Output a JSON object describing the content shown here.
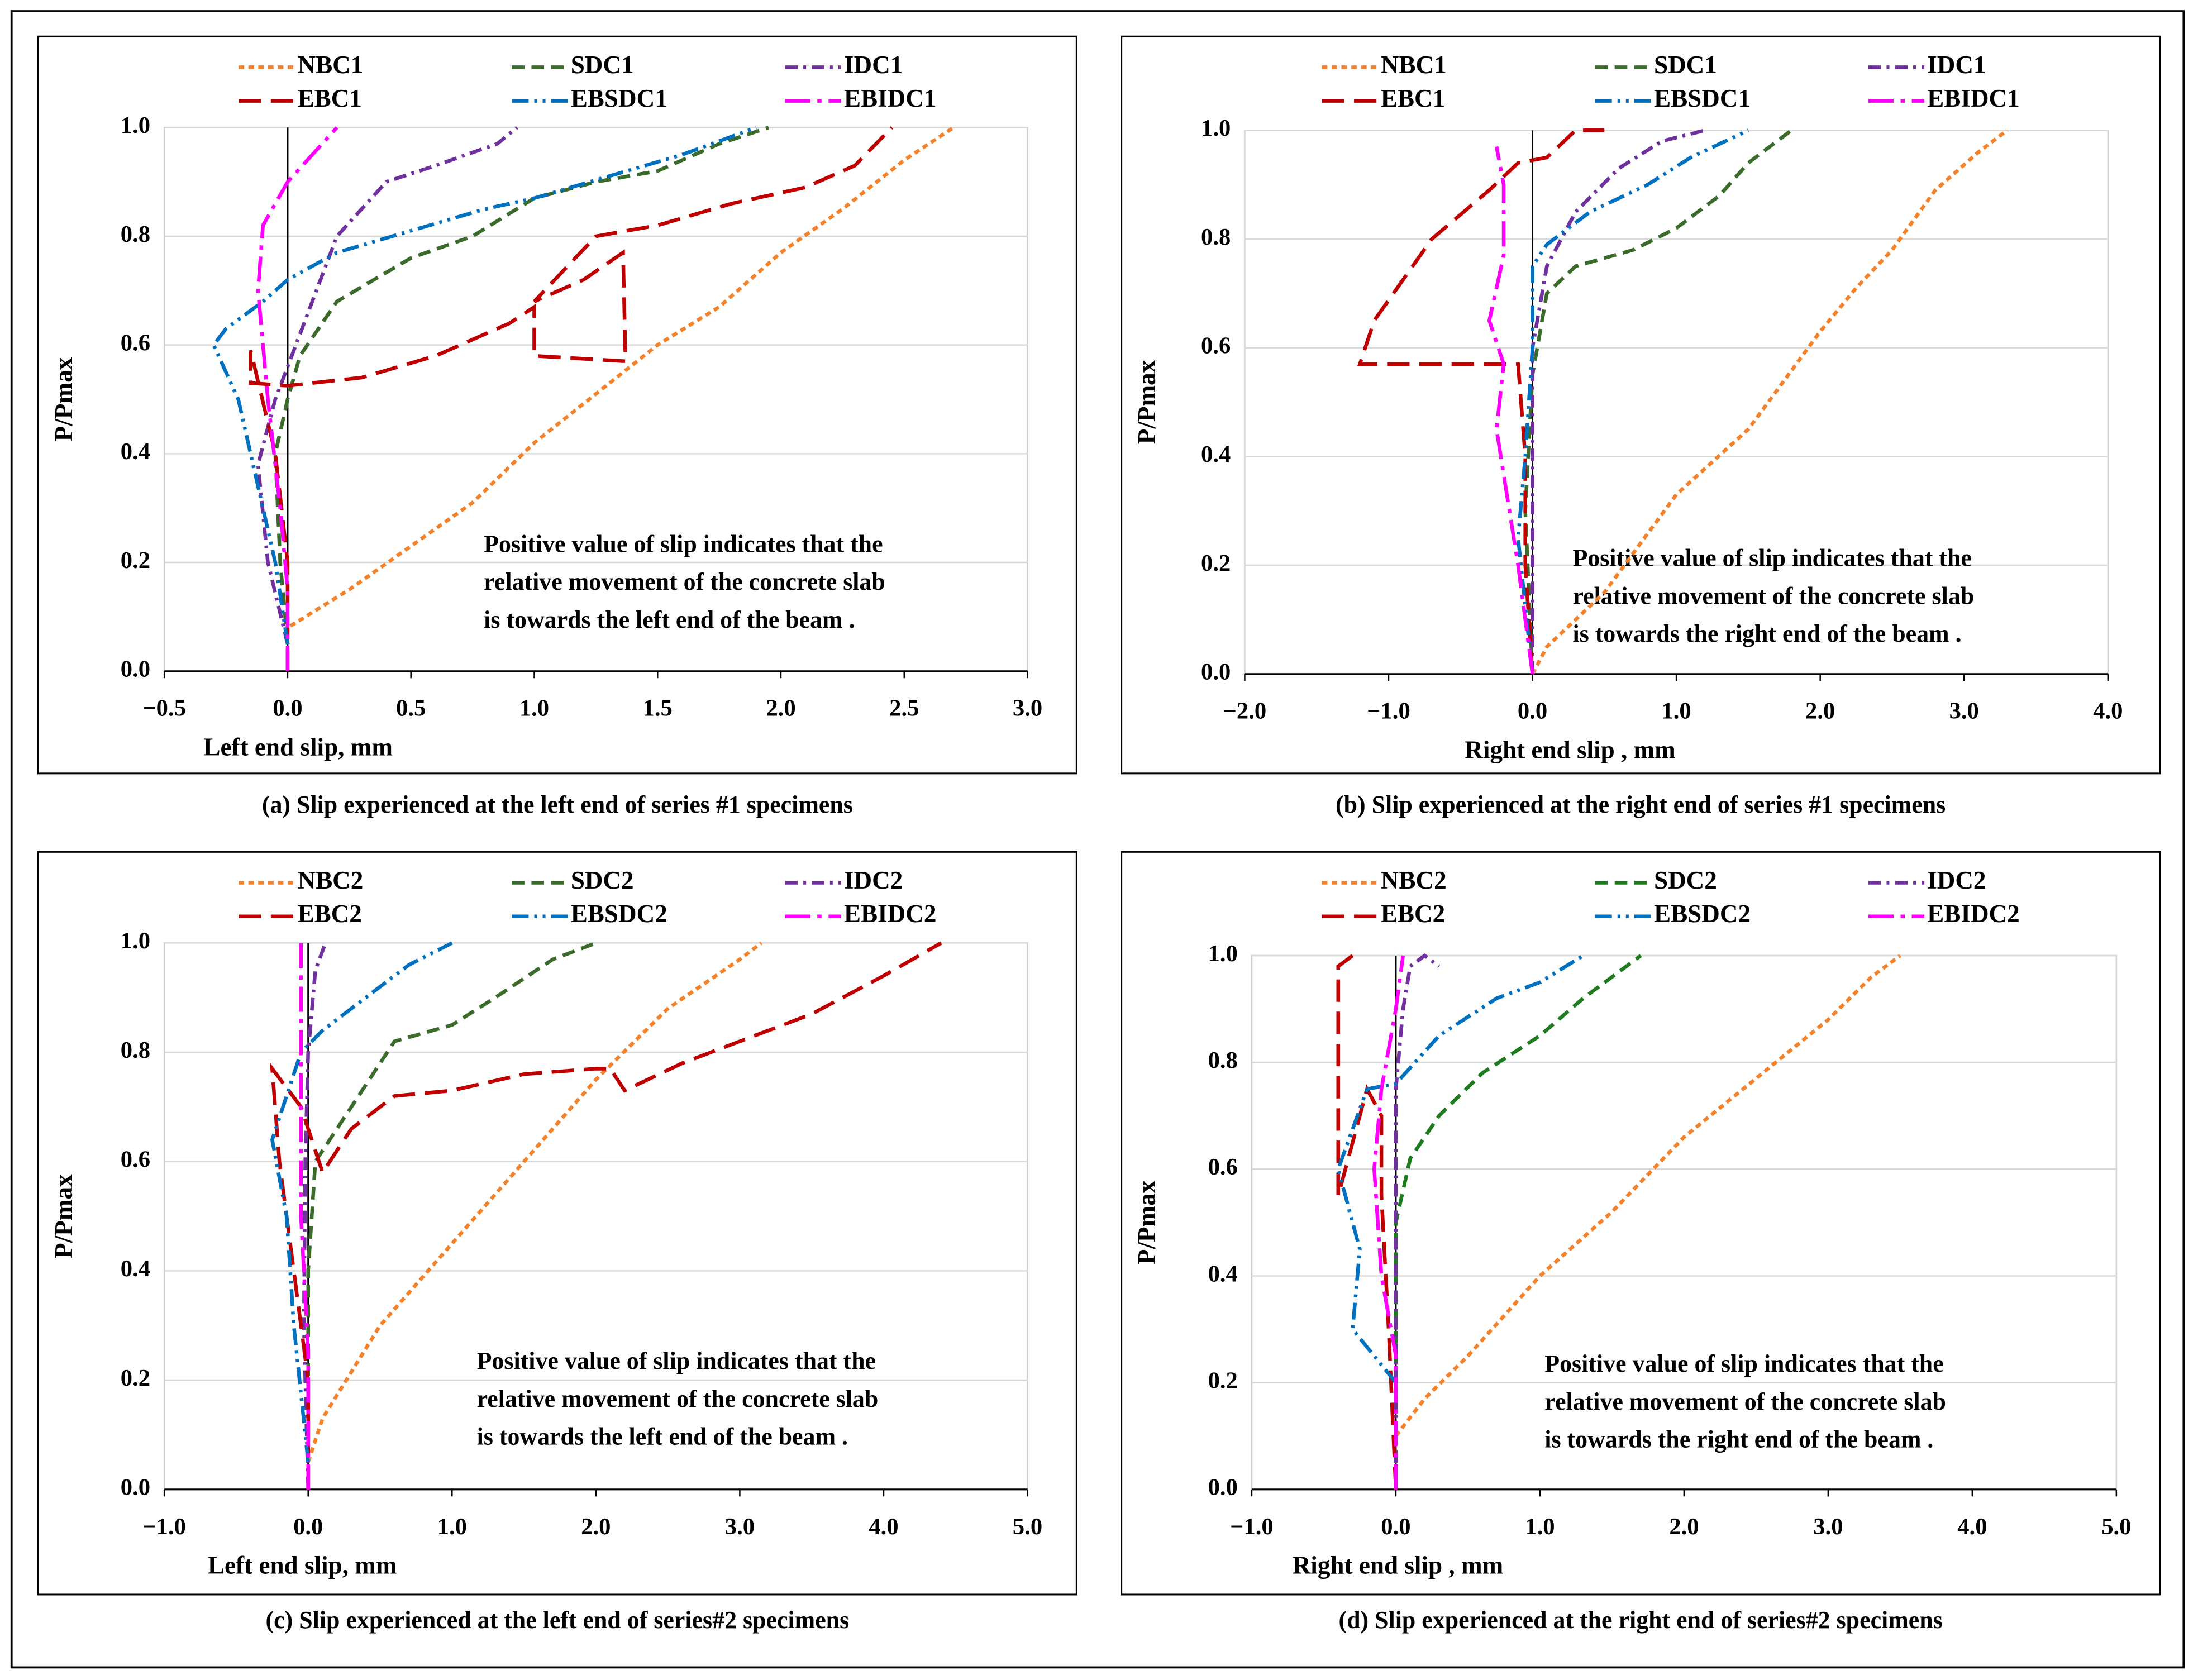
{
  "chart_data": [
    {
      "type": "line",
      "title": "(a) Slip experienced at the left end of series #1 specimens",
      "x_label": "Left end slip, mm",
      "y_label": "P/Pmax",
      "annotation": [
        "Positive value of slip indicates that the",
        "relative movement of the concrete slab",
        "is towards the left end of the beam ."
      ],
      "xlim": [
        -0.5,
        3.0
      ],
      "ylim": [
        0,
        1.0
      ],
      "xticks": [
        {
          "value": -0.5,
          "label": "−0.5"
        },
        {
          "value": 0,
          "label": "0.0"
        },
        0.5,
        {
          "value": 1,
          "label": "1.0"
        },
        1.5,
        {
          "value": 2,
          "label": "2.0"
        },
        2.5,
        {
          "value": 3,
          "label": "3.0"
        }
      ],
      "yticks": [
        {
          "value": 0,
          "label": "0.0"
        },
        0.2,
        0.4,
        0.6,
        0.8,
        {
          "value": 1,
          "label": "1.0"
        }
      ],
      "grid": true,
      "series": [
        {
          "name": "NBC1",
          "color": "#f4822a",
          "x": [
            0,
            0,
            0.25,
            0.5,
            0.75,
            1.0,
            1.25,
            1.5,
            1.75,
            2.0,
            2.25,
            2.5,
            2.7
          ],
          "values": [
            0.05,
            0.08,
            0.15,
            0.23,
            0.31,
            0.42,
            0.51,
            0.6,
            0.67,
            0.77,
            0.85,
            0.94,
            1.0
          ]
        },
        {
          "name": "SDC1",
          "color": "#3a6b2a",
          "x": [
            0,
            -0.03,
            -0.05,
            0,
            0.05,
            0.2,
            0.5,
            0.75,
            1.0,
            1.25,
            1.5,
            1.75,
            1.95
          ],
          "values": [
            0.05,
            0.2,
            0.4,
            0.5,
            0.58,
            0.68,
            0.76,
            0.8,
            0.87,
            0.9,
            0.92,
            0.97,
            1.0
          ]
        },
        {
          "name": "IDC1",
          "color": "#7030a0",
          "x": [
            0,
            -0.08,
            -0.12,
            -0.05,
            0.05,
            0.2,
            0.4,
            0.6,
            0.85,
            0.93
          ],
          "values": [
            0.05,
            0.2,
            0.38,
            0.5,
            0.62,
            0.8,
            0.9,
            0.93,
            0.97,
            1.0
          ]
        },
        {
          "name": "EBC1",
          "color": "#c00000",
          "x": [
            0,
            0,
            -0.05,
            -0.15,
            -0.15,
            0,
            0.3,
            0.6,
            0.9,
            1.0,
            1.0,
            1.37,
            1.36,
            1.2,
            1.0,
            1.25,
            1.5,
            1.8,
            2.1,
            2.3,
            2.45
          ],
          "values": [
            0,
            0.2,
            0.4,
            0.59,
            0.53,
            0.525,
            0.54,
            0.58,
            0.64,
            0.67,
            0.58,
            0.57,
            0.77,
            0.72,
            0.68,
            0.8,
            0.82,
            0.86,
            0.89,
            0.93,
            1.0
          ]
        },
        {
          "name": "EBSDC1",
          "color": "#0070c0",
          "x": [
            0,
            -0.05,
            -0.15,
            -0.2,
            -0.3,
            -0.25,
            -0.1,
            0,
            0.2,
            0.5,
            0.8,
            1.0,
            1.3,
            1.6,
            1.9
          ],
          "values": [
            0.05,
            0.2,
            0.4,
            0.5,
            0.6,
            0.63,
            0.68,
            0.72,
            0.77,
            0.81,
            0.85,
            0.87,
            0.91,
            0.95,
            1.0
          ]
        },
        {
          "name": "EBIDC1",
          "color": "#ff00ff",
          "x": [
            0,
            0,
            -0.03,
            -0.08,
            -0.12,
            -0.1,
            0,
            0.1,
            0.2
          ],
          "values": [
            0,
            0.15,
            0.3,
            0.5,
            0.7,
            0.82,
            0.9,
            0.95,
            1.0
          ]
        }
      ]
    },
    {
      "type": "line",
      "title": "(b) Slip experienced at the right end of series #1 specimens",
      "x_label": "Right end slip , mm",
      "y_label": "P/Pmax",
      "annotation": [
        "Positive value of slip indicates that the",
        "relative movement of the concrete slab",
        "is towards the right end of the beam ."
      ],
      "xlim": [
        -2.0,
        4.0
      ],
      "ylim": [
        0,
        1.0
      ],
      "xticks": [
        {
          "value": -2,
          "label": "−2.0"
        },
        {
          "value": -1,
          "label": "−1.0"
        },
        {
          "value": 0,
          "label": "0.0"
        },
        {
          "value": 1,
          "label": "1.0"
        },
        {
          "value": 2,
          "label": "2.0"
        },
        {
          "value": 3,
          "label": "3.0"
        },
        {
          "value": 4,
          "label": "4.0"
        }
      ],
      "yticks": [
        {
          "value": 0,
          "label": "0.0"
        },
        0.2,
        0.4,
        0.6,
        0.8,
        {
          "value": 1,
          "label": "1.0"
        }
      ],
      "grid": true,
      "series": [
        {
          "name": "NBC1",
          "color": "#f4822a",
          "x": [
            0,
            0.1,
            0.5,
            1.0,
            1.5,
            2.0,
            2.25,
            2.5,
            2.8,
            3.1,
            3.3
          ],
          "values": [
            0,
            0.05,
            0.15,
            0.33,
            0.45,
            0.63,
            0.71,
            0.78,
            0.89,
            0.96,
            1.0
          ]
        },
        {
          "name": "SDC1",
          "color": "#3a6b2a",
          "x": [
            0,
            -0.05,
            0,
            0.1,
            0.3,
            0.7,
            1.0,
            1.3,
            1.5,
            1.8
          ],
          "values": [
            0,
            0.3,
            0.55,
            0.7,
            0.75,
            0.78,
            0.82,
            0.88,
            0.94,
            1.0
          ]
        },
        {
          "name": "IDC1",
          "color": "#7030a0",
          "x": [
            0,
            0,
            0,
            0.1,
            0.3,
            0.6,
            0.9,
            1.2
          ],
          "values": [
            0,
            0.4,
            0.6,
            0.75,
            0.85,
            0.93,
            0.98,
            1.0
          ]
        },
        {
          "name": "EBC1",
          "color": "#c00000",
          "x": [
            0,
            -0.05,
            -0.05,
            -0.1,
            -1.2,
            -1.1,
            -0.7,
            -0.3,
            -0.1,
            0.1,
            0.3,
            0.5
          ],
          "values": [
            0,
            0.2,
            0.4,
            0.57,
            0.57,
            0.65,
            0.8,
            0.89,
            0.94,
            0.95,
            1.0,
            1.0
          ]
        },
        {
          "name": "EBSDC1",
          "color": "#0070c0",
          "x": [
            0,
            -0.1,
            -0.05,
            0,
            0,
            0.1,
            0.4,
            0.8,
            1.1,
            1.5
          ],
          "values": [
            0,
            0.25,
            0.4,
            0.6,
            0.75,
            0.79,
            0.85,
            0.9,
            0.95,
            1.0
          ]
        },
        {
          "name": "EBIDC1",
          "color": "#ff00ff",
          "x": [
            0,
            -0.1,
            -0.25,
            -0.2,
            -0.3,
            -0.2,
            -0.2,
            -0.25
          ],
          "values": [
            0,
            0.2,
            0.45,
            0.57,
            0.65,
            0.77,
            0.9,
            0.97
          ]
        }
      ]
    },
    {
      "type": "line",
      "title": "(c) Slip experienced at the left end of series#2 specimens",
      "x_label": "Left end slip, mm",
      "y_label": "P/Pmax",
      "annotation": [
        "Positive value of slip indicates that the",
        "relative movement of the concrete slab",
        "is towards the left end of the beam ."
      ],
      "xlim": [
        -1.0,
        5.0
      ],
      "ylim": [
        0,
        1.0
      ],
      "xticks": [
        {
          "value": -1,
          "label": "−1.0"
        },
        {
          "value": 0,
          "label": "0.0"
        },
        {
          "value": 1,
          "label": "1.0"
        },
        {
          "value": 2,
          "label": "2.0"
        },
        {
          "value": 3,
          "label": "3.0"
        },
        {
          "value": 4,
          "label": "4.0"
        },
        {
          "value": 5,
          "label": "5.0"
        }
      ],
      "yticks": [
        {
          "value": 0,
          "label": "0.0"
        },
        0.2,
        0.4,
        0.6,
        0.8,
        {
          "value": 1,
          "label": "1.0"
        }
      ],
      "grid": true,
      "series": [
        {
          "name": "NBC2",
          "color": "#f4822a",
          "x": [
            0,
            0.1,
            0.5,
            1.0,
            1.5,
            2.0,
            2.5,
            3.0,
            3.15
          ],
          "values": [
            0.05,
            0.13,
            0.3,
            0.45,
            0.6,
            0.75,
            0.88,
            0.97,
            1.0
          ]
        },
        {
          "name": "SDC2",
          "color": "#3a6b2a",
          "x": [
            0,
            0,
            0.05,
            0.3,
            0.6,
            1.0,
            1.3,
            1.7,
            2.0
          ],
          "values": [
            0.1,
            0.4,
            0.6,
            0.7,
            0.82,
            0.85,
            0.9,
            0.97,
            1.0
          ]
        },
        {
          "name": "IDC2",
          "color": "#7030a0",
          "x": [
            0,
            -0.03,
            -0.02,
            0,
            0.05,
            0.12
          ],
          "values": [
            0,
            0.3,
            0.6,
            0.8,
            0.95,
            1.0
          ]
        },
        {
          "name": "EBC2",
          "color": "#c00000",
          "x": [
            0,
            0,
            -0.1,
            -0.2,
            -0.25,
            -0.05,
            0.1,
            0.3,
            0.6,
            1.0,
            1.5,
            2.0,
            2.1,
            2.2,
            2.6,
            3.0,
            3.5,
            4.0,
            4.4
          ],
          "values": [
            0,
            0.2,
            0.4,
            0.6,
            0.77,
            0.7,
            0.58,
            0.66,
            0.72,
            0.73,
            0.76,
            0.77,
            0.77,
            0.73,
            0.78,
            0.82,
            0.87,
            0.94,
            1.0
          ]
        },
        {
          "name": "EBSDC2",
          "color": "#0070c0",
          "x": [
            0,
            -0.1,
            -0.15,
            -0.25,
            -0.15,
            -0.05,
            0.1,
            0.4,
            0.7,
            1.0
          ],
          "values": [
            0.05,
            0.3,
            0.5,
            0.64,
            0.72,
            0.8,
            0.84,
            0.9,
            0.96,
            1.0
          ]
        },
        {
          "name": "EBIDC2",
          "color": "#ff00ff",
          "x": [
            0,
            0,
            -0.05,
            -0.05,
            -0.05,
            -0.05
          ],
          "values": [
            0,
            0.25,
            0.5,
            0.7,
            0.85,
            1.0
          ]
        }
      ]
    },
    {
      "type": "line",
      "title": "(d) Slip experienced at the right end of series#2 specimens",
      "x_label": "Right end slip , mm",
      "y_label": "P/Pmax",
      "annotation": [
        "Positive value of slip indicates that the",
        "relative movement of the concrete slab",
        "is towards the right end of the beam ."
      ],
      "xlim": [
        -1.0,
        5.0
      ],
      "ylim": [
        0,
        1.0
      ],
      "xticks": [
        {
          "value": -1,
          "label": "−1.0"
        },
        {
          "value": 0,
          "label": "0.0"
        },
        {
          "value": 1,
          "label": "1.0"
        },
        {
          "value": 2,
          "label": "2.0"
        },
        {
          "value": 3,
          "label": "3.0"
        },
        {
          "value": 4,
          "label": "4.0"
        },
        {
          "value": 5,
          "label": "5.0"
        }
      ],
      "yticks": [
        {
          "value": 0,
          "label": "0.0"
        },
        0.2,
        0.4,
        0.6,
        0.8,
        {
          "value": 1,
          "label": "1.0"
        }
      ],
      "grid": true,
      "series": [
        {
          "name": "NBC2",
          "color": "#f4822a",
          "x": [
            0,
            0.2,
            0.5,
            1.0,
            1.5,
            2.0,
            2.5,
            3.0,
            3.3,
            3.5
          ],
          "values": [
            0.1,
            0.17,
            0.25,
            0.4,
            0.52,
            0.66,
            0.77,
            0.88,
            0.96,
            1.0
          ]
        },
        {
          "name": "SDC2",
          "color": "#1e7b1e",
          "x": [
            0,
            0,
            0.1,
            0.3,
            0.6,
            1.0,
            1.3,
            1.5,
            1.7
          ],
          "values": [
            0.2,
            0.5,
            0.62,
            0.7,
            0.78,
            0.85,
            0.92,
            0.96,
            1.0
          ]
        },
        {
          "name": "IDC2",
          "color": "#7030a0",
          "x": [
            0,
            0,
            0,
            0.05,
            0.1,
            0.2,
            0.3
          ],
          "values": [
            0.05,
            0.5,
            0.75,
            0.9,
            0.98,
            1.0,
            0.98
          ]
        },
        {
          "name": "EBC2",
          "color": "#c00000",
          "x": [
            0,
            -0.05,
            -0.1,
            -0.1,
            -0.2,
            -0.4,
            -0.4,
            -0.4,
            -0.3
          ],
          "values": [
            0,
            0.3,
            0.55,
            0.7,
            0.75,
            0.55,
            0.8,
            0.98,
            1.0
          ]
        },
        {
          "name": "EBSDC2",
          "color": "#0070c0",
          "x": [
            0,
            -0.3,
            -0.25,
            -0.4,
            -0.2,
            0,
            0.3,
            0.7,
            1.0,
            1.3
          ],
          "values": [
            0.2,
            0.3,
            0.45,
            0.6,
            0.75,
            0.76,
            0.85,
            0.92,
            0.95,
            1.0
          ]
        },
        {
          "name": "EBIDC2",
          "color": "#ff00ff",
          "x": [
            0,
            0,
            -0.1,
            -0.15,
            -0.1,
            0,
            0.05
          ],
          "values": [
            0,
            0.25,
            0.4,
            0.6,
            0.75,
            0.9,
            1.0
          ]
        }
      ]
    }
  ]
}
